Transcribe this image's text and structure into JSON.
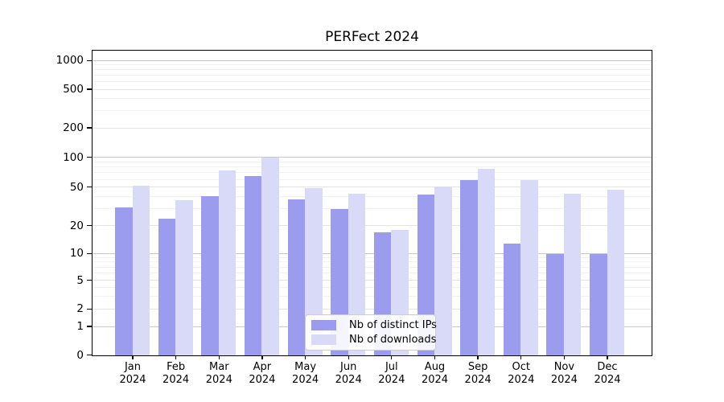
{
  "chart_data": {
    "type": "bar",
    "title": "PERFect 2024",
    "categories": [
      "Jan",
      "Feb",
      "Mar",
      "Apr",
      "May",
      "Jun",
      "Jul",
      "Aug",
      "Sep",
      "Oct",
      "Nov",
      "Dec"
    ],
    "year_label": "2024",
    "series": [
      {
        "name": "Nb of distinct IPs",
        "color": "#9c9cee",
        "values": [
          31,
          24,
          41,
          65,
          38,
          30,
          17,
          42,
          60,
          13,
          10,
          10
        ]
      },
      {
        "name": "Nb of downloads",
        "color": "#d9d9f8",
        "values": [
          52,
          37,
          75,
          100,
          49,
          43,
          18,
          51,
          78,
          60,
          43,
          48
        ]
      }
    ],
    "yticks": [
      0,
      1,
      2,
      5,
      10,
      20,
      50,
      100,
      200,
      500,
      1000
    ],
    "ylim": [
      0,
      1000
    ],
    "y_scale": "log-like (symlog, linear below 1)",
    "xlabel": "",
    "ylabel": "",
    "grid": "horizontal",
    "legend_position": "lower center"
  }
}
